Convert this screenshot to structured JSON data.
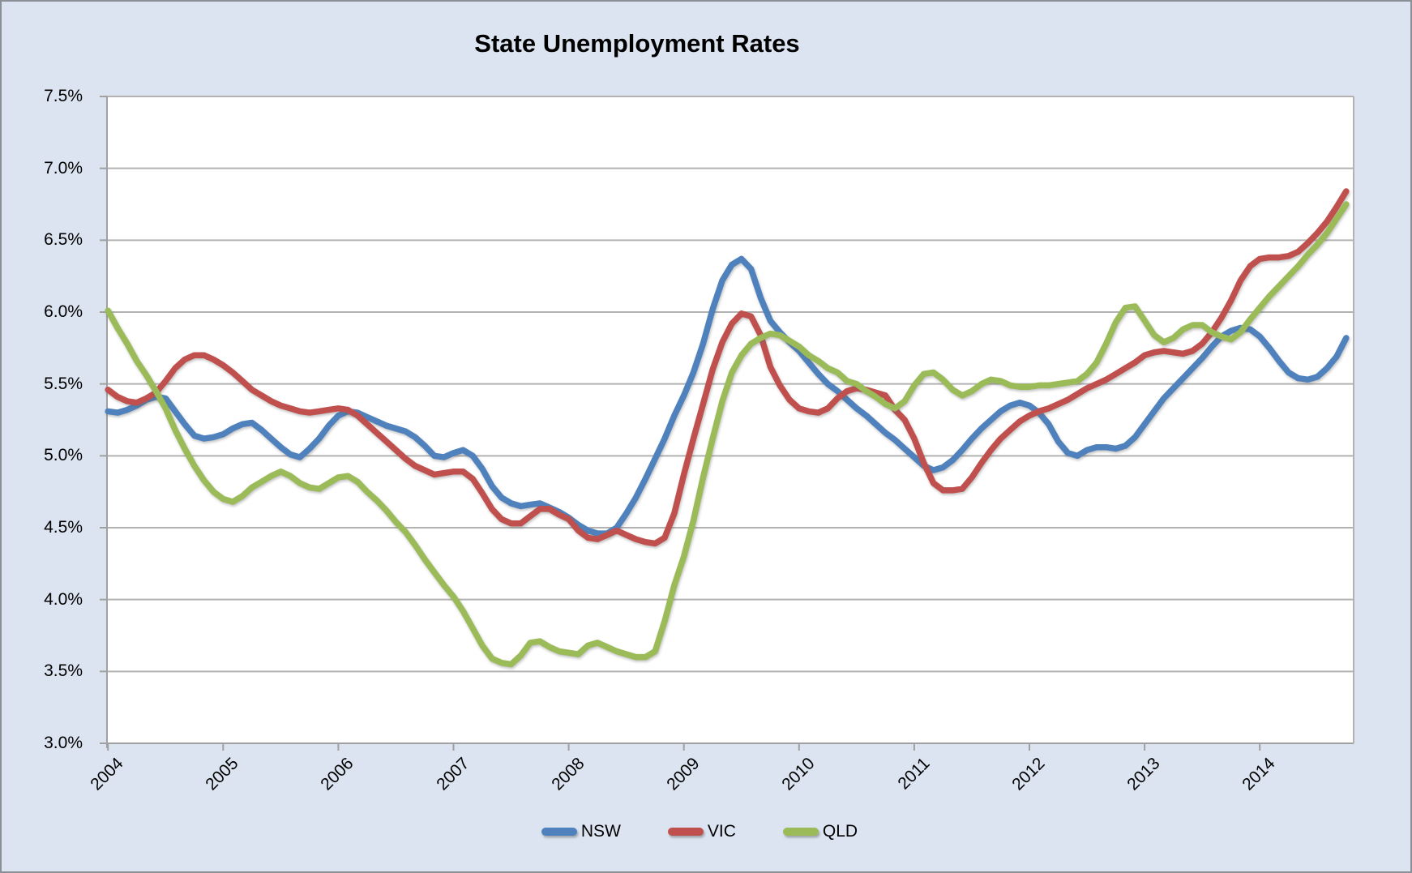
{
  "window": {
    "background_color": "#dbe4f0",
    "border_color": "#8b8f96",
    "plot_background_color": "#ffffff",
    "gridline_color": "#b2b2b2",
    "axis_color": "#a0a0a0"
  },
  "chart_data": {
    "type": "line",
    "title": "State Unemployment Rates",
    "xlabel": "",
    "ylabel": "",
    "grid": true,
    "legend_position": "bottom",
    "y_axis": {
      "min": 3.0,
      "max": 7.5,
      "step": 0.5,
      "format": "percent"
    },
    "y_tick_labels": [
      "7.5%",
      "7.0%",
      "6.5%",
      "6.0%",
      "5.5%",
      "5.0%",
      "4.5%",
      "4.0%",
      "3.5%",
      "3.0%"
    ],
    "x_tick_labels": [
      "2004",
      "2005",
      "2006",
      "2007",
      "2008",
      "2009",
      "2010",
      "2011",
      "2012",
      "2013",
      "2014"
    ],
    "x_start": "2004-01",
    "x_end": "2014-10",
    "points_per_year": 12,
    "series": [
      {
        "name": "NSW",
        "color": "#4f81bd",
        "values": [
          5.31,
          5.3,
          5.32,
          5.35,
          5.39,
          5.41,
          5.4,
          5.31,
          5.22,
          5.14,
          5.12,
          5.13,
          5.15,
          5.19,
          5.22,
          5.23,
          5.18,
          5.12,
          5.06,
          5.01,
          4.99,
          5.05,
          5.12,
          5.21,
          5.28,
          5.31,
          5.3,
          5.27,
          5.24,
          5.21,
          5.19,
          5.17,
          5.13,
          5.07,
          5.0,
          4.99,
          5.02,
          5.04,
          5.0,
          4.91,
          4.79,
          4.71,
          4.67,
          4.65,
          4.66,
          4.67,
          4.64,
          4.61,
          4.57,
          4.52,
          4.48,
          4.46,
          4.46,
          4.5,
          4.6,
          4.71,
          4.84,
          4.98,
          5.12,
          5.28,
          5.42,
          5.58,
          5.78,
          6.02,
          6.22,
          6.33,
          6.37,
          6.3,
          6.1,
          5.94,
          5.86,
          5.79,
          5.73,
          5.65,
          5.57,
          5.5,
          5.45,
          5.39,
          5.33,
          5.28,
          5.22,
          5.16,
          5.11,
          5.05,
          4.99,
          4.93,
          4.9,
          4.92,
          4.97,
          5.04,
          5.12,
          5.19,
          5.25,
          5.31,
          5.35,
          5.37,
          5.35,
          5.3,
          5.22,
          5.1,
          5.02,
          5.0,
          5.04,
          5.06,
          5.06,
          5.05,
          5.07,
          5.13,
          5.22,
          5.31,
          5.4,
          5.47,
          5.54,
          5.61,
          5.68,
          5.76,
          5.83,
          5.87,
          5.89,
          5.88,
          5.83,
          5.75,
          5.66,
          5.58,
          5.54,
          5.53,
          5.55,
          5.61,
          5.69,
          5.82
        ]
      },
      {
        "name": "VIC",
        "color": "#c0504d",
        "values": [
          5.46,
          5.41,
          5.38,
          5.37,
          5.4,
          5.44,
          5.52,
          5.61,
          5.67,
          5.7,
          5.7,
          5.67,
          5.63,
          5.58,
          5.52,
          5.46,
          5.42,
          5.38,
          5.35,
          5.33,
          5.31,
          5.3,
          5.31,
          5.32,
          5.33,
          5.32,
          5.28,
          5.22,
          5.16,
          5.1,
          5.04,
          4.98,
          4.93,
          4.9,
          4.87,
          4.88,
          4.89,
          4.89,
          4.84,
          4.74,
          4.63,
          4.56,
          4.53,
          4.53,
          4.58,
          4.63,
          4.63,
          4.59,
          4.56,
          4.48,
          4.43,
          4.42,
          4.45,
          4.48,
          4.45,
          4.42,
          4.4,
          4.39,
          4.43,
          4.6,
          4.87,
          5.12,
          5.36,
          5.6,
          5.79,
          5.92,
          5.99,
          5.97,
          5.84,
          5.62,
          5.49,
          5.39,
          5.33,
          5.31,
          5.3,
          5.33,
          5.4,
          5.45,
          5.47,
          5.46,
          5.44,
          5.42,
          5.32,
          5.25,
          5.12,
          4.95,
          4.81,
          4.76,
          4.76,
          4.77,
          4.85,
          4.95,
          5.04,
          5.12,
          5.18,
          5.24,
          5.28,
          5.31,
          5.33,
          5.36,
          5.39,
          5.43,
          5.47,
          5.5,
          5.53,
          5.57,
          5.61,
          5.65,
          5.7,
          5.72,
          5.73,
          5.72,
          5.71,
          5.73,
          5.78,
          5.86,
          5.96,
          6.08,
          6.22,
          6.32,
          6.37,
          6.38,
          6.38,
          6.39,
          6.42,
          6.48,
          6.55,
          6.63,
          6.73,
          6.84
        ]
      },
      {
        "name": "QLD",
        "color": "#9bbb59",
        "values": [
          6.01,
          5.89,
          5.78,
          5.66,
          5.56,
          5.45,
          5.33,
          5.18,
          5.05,
          4.93,
          4.83,
          4.75,
          4.7,
          4.68,
          4.72,
          4.78,
          4.82,
          4.86,
          4.89,
          4.86,
          4.81,
          4.78,
          4.77,
          4.81,
          4.85,
          4.86,
          4.82,
          4.75,
          4.69,
          4.62,
          4.54,
          4.47,
          4.38,
          4.28,
          4.19,
          4.1,
          4.02,
          3.92,
          3.8,
          3.68,
          3.59,
          3.56,
          3.55,
          3.61,
          3.7,
          3.71,
          3.67,
          3.64,
          3.63,
          3.62,
          3.68,
          3.7,
          3.67,
          3.64,
          3.62,
          3.6,
          3.6,
          3.64,
          3.85,
          4.1,
          4.3,
          4.55,
          4.85,
          5.12,
          5.38,
          5.58,
          5.7,
          5.78,
          5.82,
          5.85,
          5.84,
          5.8,
          5.76,
          5.7,
          5.66,
          5.61,
          5.58,
          5.52,
          5.5,
          5.45,
          5.41,
          5.36,
          5.33,
          5.38,
          5.49,
          5.57,
          5.58,
          5.53,
          5.46,
          5.42,
          5.45,
          5.5,
          5.53,
          5.52,
          5.49,
          5.48,
          5.48,
          5.49,
          5.49,
          5.5,
          5.51,
          5.52,
          5.57,
          5.65,
          5.78,
          5.93,
          6.03,
          6.04,
          5.94,
          5.84,
          5.79,
          5.82,
          5.88,
          5.91,
          5.91,
          5.86,
          5.83,
          5.81,
          5.86,
          5.95,
          6.03,
          6.11,
          6.18,
          6.25,
          6.32,
          6.4,
          6.47,
          6.55,
          6.65,
          6.75
        ]
      }
    ]
  }
}
